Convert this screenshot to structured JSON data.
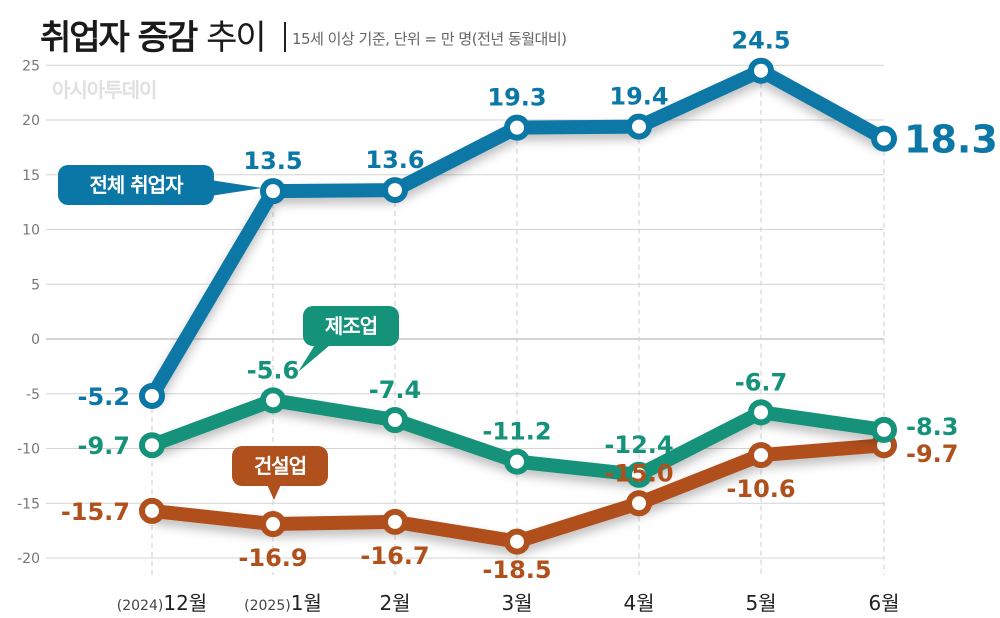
{
  "header": {
    "title_bold": "취업자 증감",
    "title_thin": "추이",
    "subtitle": "15세 이상 기준, 단위 = 만 명(전년 동월대비)",
    "watermark": "아시아투데이"
  },
  "callouts": {
    "total": "전체 취업자",
    "manufacturing": "제조업",
    "construction": "건설업"
  },
  "chart_data": {
    "type": "line",
    "title": "취업자 증감 추이",
    "categories": [
      "12월",
      "1월",
      "2월",
      "3월",
      "4월",
      "5월",
      "6월"
    ],
    "category_prefixes": [
      "(2024)",
      "(2025)",
      "",
      "",
      "",
      "",
      ""
    ],
    "ylim": [
      -22,
      26
    ],
    "yticks": [
      25,
      20,
      15,
      10,
      5,
      0,
      -5,
      -10,
      -15,
      -20
    ],
    "grid": true,
    "series": [
      {
        "name": "전체 취업자",
        "color": "#0a77a6",
        "values": [
          -5.2,
          13.5,
          13.6,
          19.3,
          19.4,
          24.5,
          18.3
        ],
        "labels": [
          "-5.2",
          "13.5",
          "13.6",
          "19.3",
          "19.4",
          "24.5",
          "18.3"
        ],
        "label_pos": [
          "left",
          "above",
          "above",
          "above",
          "above",
          "above",
          "right-large"
        ]
      },
      {
        "name": "제조업",
        "color": "#15927a",
        "values": [
          -9.7,
          -5.6,
          -7.4,
          -11.2,
          -12.4,
          -6.7,
          -8.3
        ],
        "labels": [
          "-9.7",
          "-5.6",
          "-7.4",
          "-11.2",
          "-12.4",
          "-6.7",
          "-8.3"
        ],
        "label_pos": [
          "left",
          "above",
          "above",
          "above",
          "above",
          "above",
          "right"
        ]
      },
      {
        "name": "건설업",
        "color": "#b0501c",
        "values": [
          -15.7,
          -16.9,
          -16.7,
          -18.5,
          -15.0,
          -10.6,
          -9.7
        ],
        "labels": [
          "-15.7",
          "-16.9",
          "-16.7",
          "-18.5",
          "-15.0",
          "-10.6",
          "-9.7"
        ],
        "label_pos": [
          "left",
          "below",
          "below",
          "below",
          "above",
          "below",
          "right"
        ]
      }
    ]
  }
}
